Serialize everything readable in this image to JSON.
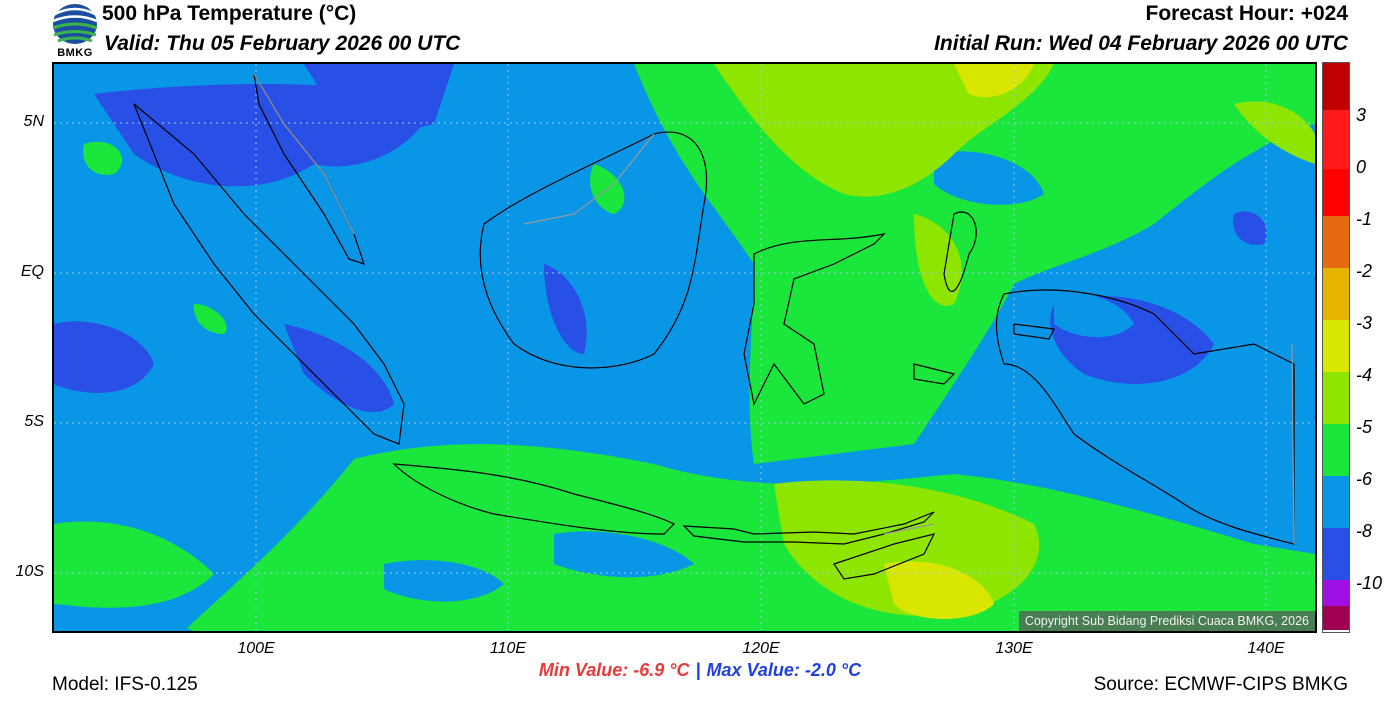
{
  "header": {
    "title": "500 hPa Temperature (°C)",
    "valid": "Valid: Thu 05 February 2026 00 UTC",
    "forecast_hour": "Forecast Hour: +024",
    "initial_run": "Initial Run: Wed 04 February 2026 00 UTC",
    "logo_text": "BMKG"
  },
  "map": {
    "lat_labels": [
      "5N",
      "EQ",
      "5S",
      "10S"
    ],
    "lon_labels": [
      "100E",
      "110E",
      "120E",
      "130E",
      "140E"
    ],
    "copyright": "Copyright Sub Bidang Prediksi Cuaca BMKG, 2026"
  },
  "colorbar": {
    "labels": [
      "3",
      "0",
      "-1",
      "-2",
      "-3",
      "-4",
      "-5",
      "-6",
      "-8",
      "-10"
    ],
    "colors": [
      "#c00000",
      "#ff1a1a",
      "#ff0000",
      "#e86a10",
      "#e6b400",
      "#d8e600",
      "#8ee600",
      "#1ae63c",
      "#0a96e6",
      "#2850e6",
      "#a010e6",
      "#a00050"
    ]
  },
  "stats": {
    "min": "Min Value: -6.9 °C",
    "sep": "|",
    "max": "Max Value: -2.0 °C"
  },
  "footer": {
    "model": "Model: IFS-0.125",
    "source": "Source: ECMWF-CIPS BMKG"
  }
}
